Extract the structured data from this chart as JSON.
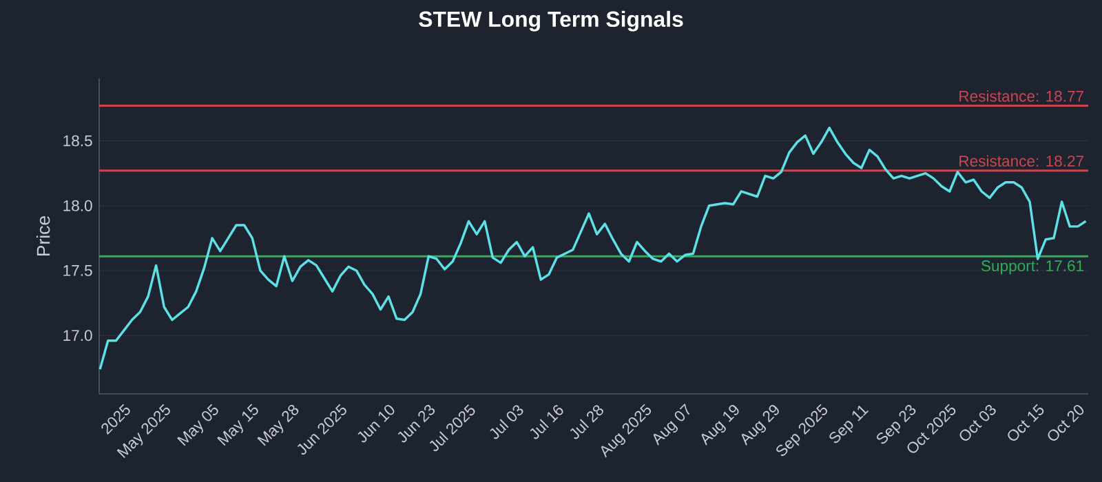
{
  "chart_data": {
    "type": "line",
    "title": "STEW Long Term Signals",
    "ylabel": "Price",
    "categories": [
      null,
      null,
      null,
      "2025",
      null,
      null,
      null,
      null,
      "May 2025",
      null,
      null,
      null,
      null,
      null,
      "May 05",
      null,
      null,
      null,
      null,
      "May 15",
      null,
      null,
      null,
      null,
      "May 28",
      null,
      null,
      null,
      null,
      null,
      "Jun 2025",
      null,
      null,
      null,
      null,
      null,
      "Jun 10",
      null,
      null,
      null,
      null,
      "Jun 23",
      null,
      null,
      null,
      null,
      "Jul 2025",
      null,
      null,
      null,
      null,
      null,
      "Jul 03",
      null,
      null,
      null,
      null,
      "Jul 16",
      null,
      null,
      null,
      null,
      "Jul 28",
      null,
      null,
      null,
      null,
      null,
      "Aug 2025",
      null,
      null,
      null,
      null,
      "Aug 07",
      null,
      null,
      null,
      null,
      null,
      "Aug 19",
      null,
      null,
      null,
      null,
      "Aug 29",
      null,
      null,
      null,
      null,
      null,
      "Sep 2025",
      null,
      null,
      null,
      null,
      "Sep 11",
      null,
      null,
      null,
      null,
      null,
      "Sep 23",
      null,
      null,
      null,
      null,
      "Oct 2025",
      null,
      null,
      null,
      null,
      "Oct 03",
      null,
      null,
      null,
      null,
      null,
      "Oct 15",
      null,
      null,
      null,
      null,
      "Oct 20",
      null
    ],
    "series": [
      {
        "color": "#5ce1e6",
        "values": [
          16.74,
          16.96,
          16.96,
          17.04,
          17.12,
          17.18,
          17.3,
          17.54,
          17.22,
          17.12,
          17.17,
          17.22,
          17.34,
          17.52,
          17.75,
          17.65,
          17.75,
          17.85,
          17.85,
          17.75,
          17.5,
          17.43,
          17.38,
          17.61,
          17.42,
          17.53,
          17.58,
          17.54,
          17.44,
          17.34,
          17.46,
          17.53,
          17.5,
          17.39,
          17.32,
          17.2,
          17.3,
          17.13,
          17.12,
          17.18,
          17.32,
          17.61,
          17.59,
          17.51,
          17.57,
          17.71,
          17.88,
          17.78,
          17.88,
          17.6,
          17.56,
          17.66,
          17.72,
          17.61,
          17.68,
          17.43,
          17.47,
          17.6,
          17.63,
          17.66,
          17.8,
          17.94,
          17.78,
          17.86,
          17.74,
          17.63,
          17.57,
          17.72,
          17.65,
          17.59,
          17.57,
          17.63,
          17.57,
          17.62,
          17.63,
          17.84,
          18.0,
          18.01,
          18.02,
          18.01,
          18.11,
          18.09,
          18.07,
          18.23,
          18.21,
          18.26,
          18.41,
          18.49,
          18.54,
          18.4,
          18.49,
          18.6,
          18.49,
          18.4,
          18.33,
          18.29,
          18.43,
          18.38,
          18.28,
          18.21,
          18.23,
          18.21,
          18.23,
          18.25,
          18.21,
          18.15,
          18.11,
          18.26,
          18.18,
          18.2,
          18.11,
          18.06,
          18.14,
          18.18,
          18.18,
          18.14,
          18.03,
          17.59,
          17.74,
          17.75,
          18.03,
          17.84,
          17.84,
          17.88
        ]
      }
    ],
    "ylim": [
      16.55,
      18.98
    ],
    "yticks": [
      {
        "value": 17.0,
        "label": "17.0"
      },
      {
        "value": 17.5,
        "label": "17.5"
      },
      {
        "value": 18.0,
        "label": "18.0"
      },
      {
        "value": 18.5,
        "label": "18.5"
      }
    ],
    "grid": "y",
    "ref_lines": [
      {
        "axis": "y",
        "value": 18.77,
        "label": "Resistance: 18.77",
        "color": "#c9464f"
      },
      {
        "axis": "y",
        "value": 18.27,
        "label": "Resistance: 18.27",
        "color": "#c9464f"
      },
      {
        "axis": "y",
        "value": 17.61,
        "label": "Support: 17.61",
        "color": "#2fae55"
      }
    ]
  }
}
